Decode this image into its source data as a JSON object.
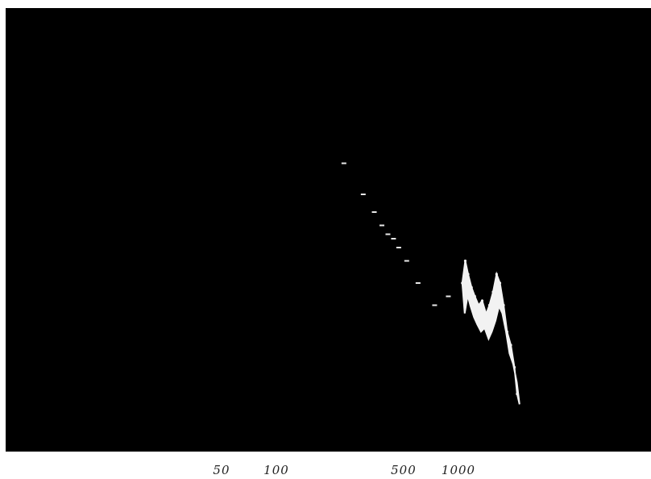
{
  "chart_data": {
    "type": "area",
    "title": "",
    "xlabel": "",
    "ylabel": "",
    "x_scale": "log",
    "xlim": [
      10,
      3000
    ],
    "ylim": [
      0,
      1
    ],
    "grid": false,
    "legend": "none",
    "x_tick_labels": [
      {
        "value": 50,
        "label": "50"
      },
      {
        "value": 100,
        "label": "100"
      },
      {
        "value": 500,
        "label": "500"
      },
      {
        "value": 1000,
        "label": "1000"
      }
    ],
    "series": [
      {
        "color": "#f2f2f2",
        "points": [
          [
            1050,
            0.38
          ],
          [
            1090,
            0.43
          ],
          [
            1130,
            0.4
          ],
          [
            1180,
            0.37
          ],
          [
            1230,
            0.35
          ],
          [
            1290,
            0.33
          ],
          [
            1350,
            0.34
          ],
          [
            1420,
            0.31
          ],
          [
            1480,
            0.33
          ],
          [
            1550,
            0.36
          ],
          [
            1620,
            0.4
          ],
          [
            1690,
            0.38
          ],
          [
            1770,
            0.33
          ],
          [
            1850,
            0.27
          ],
          [
            1940,
            0.24
          ],
          [
            2030,
            0.19
          ],
          [
            2100,
            0.13
          ]
        ]
      }
    ],
    "scattered_marks": [
      [
        235,
        0.65
      ],
      [
        300,
        0.58
      ],
      [
        345,
        0.54
      ],
      [
        380,
        0.51
      ],
      [
        410,
        0.49
      ],
      [
        440,
        0.48
      ],
      [
        470,
        0.46
      ],
      [
        520,
        0.43
      ],
      [
        600,
        0.38
      ],
      [
        740,
        0.33
      ],
      [
        880,
        0.35
      ]
    ],
    "colors": {
      "panel": "#000000",
      "page": "#ffffff",
      "signal": "#f2f2f2",
      "tick_text": "#222222"
    }
  }
}
